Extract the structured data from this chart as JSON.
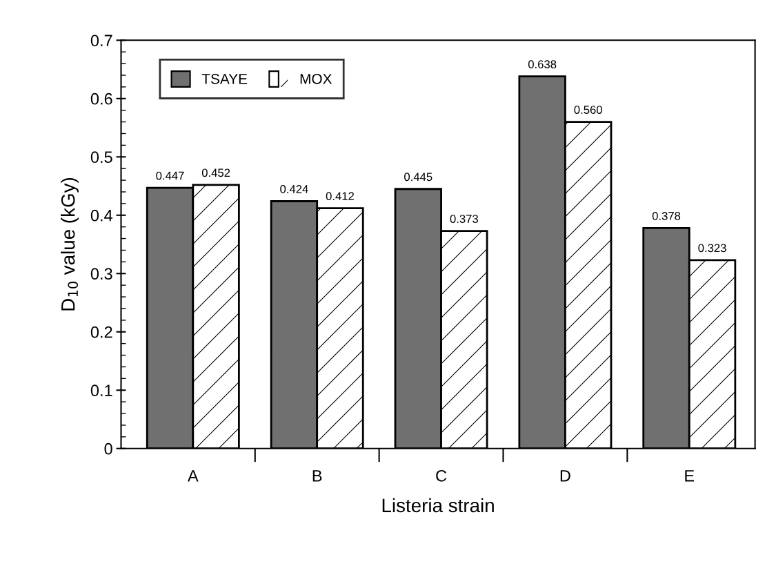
{
  "chart_data": {
    "type": "bar",
    "xlabel": "Listeria strain",
    "ylabel": "D$_{10}$ value (kGy)",
    "categories": [
      "A",
      "B",
      "C",
      "D",
      "E"
    ],
    "series": [
      {
        "name": "TSAYE",
        "color": "#707070",
        "values": [
          0.447,
          0.424,
          0.445,
          0.638,
          0.378
        ],
        "value_labels": [
          "0.447",
          "0.424",
          "0.445",
          "0.638",
          "0.378"
        ]
      },
      {
        "name": "MOX",
        "color": "#ffffff",
        "values": [
          0.452,
          0.412,
          0.373,
          0.56,
          0.323
        ],
        "value_labels": [
          "0.452",
          "0.412",
          "0.373",
          "0.560",
          "0.323"
        ]
      }
    ],
    "ylim": [
      0,
      0.7
    ],
    "yticks": [
      0,
      0.1,
      0.2,
      0.3,
      0.4,
      0.5,
      0.6,
      0.7
    ],
    "legend": "top left",
    "grid": false
  }
}
